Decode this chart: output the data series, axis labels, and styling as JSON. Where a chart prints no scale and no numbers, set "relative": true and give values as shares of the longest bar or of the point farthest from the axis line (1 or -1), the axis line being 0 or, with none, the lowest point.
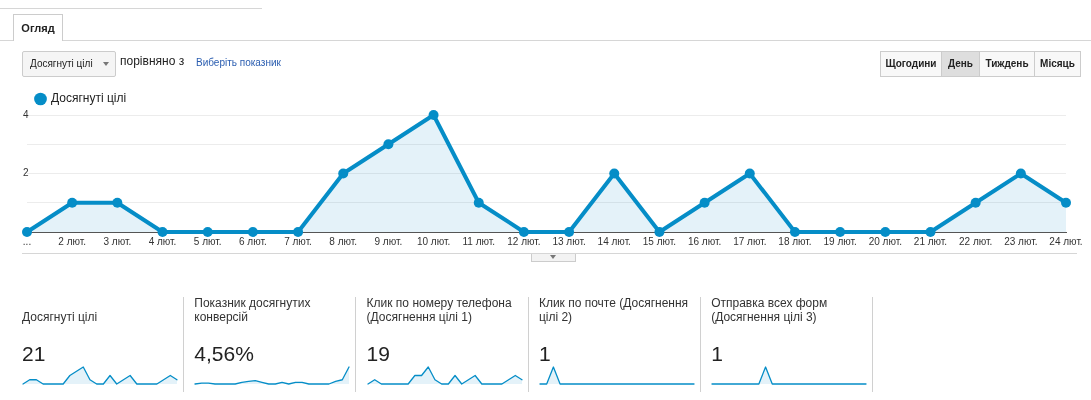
{
  "chart_data": [
    {
      "type": "area",
      "categories": [
        "...",
        "2 лют.",
        "3 лют.",
        "4 лют.",
        "5 лют.",
        "6 лют.",
        "7 лют.",
        "8 лют.",
        "9 лют.",
        "10 лют.",
        "11 лют.",
        "12 лют.",
        "13 лют.",
        "14 лют.",
        "15 лют.",
        "16 лют.",
        "17 лют.",
        "18 лют.",
        "19 лют.",
        "20 лют.",
        "21 лют.",
        "22 лют.",
        "23 лют.",
        "24 лют."
      ],
      "series": [
        {
          "name": "Досягнуті цілі",
          "color": "#058dc7",
          "values": [
            0,
            1,
            1,
            0,
            0,
            0,
            0,
            2,
            3,
            4,
            1,
            0,
            0,
            2,
            0,
            1,
            2,
            0,
            0,
            0,
            0,
            1,
            2,
            1
          ]
        }
      ],
      "ylim": [
        0,
        4
      ],
      "yticks": [
        {
          "value": 0,
          "label": null
        },
        {
          "value": 1,
          "label": null
        },
        2,
        {
          "value": 3,
          "label": null
        },
        4
      ],
      "grid": "y",
      "legend": "top left",
      "marker": "circle",
      "annotations": [
        "Огляд",
        "Досягнуті цілі",
        "порівняно з",
        "Виберіть показник",
        "Щогодини",
        "День",
        "Тиждень",
        "Місяць"
      ]
    },
    {
      "type": "area",
      "title": "Досягнуті цілі",
      "relative": true,
      "categories": [
        null,
        null,
        null,
        null,
        null,
        null,
        null,
        null,
        null,
        null,
        null,
        null,
        null,
        null,
        null,
        null,
        null,
        null,
        null,
        null,
        null,
        null,
        null,
        null
      ],
      "series": [
        {
          "color": "#058dc7",
          "values": [
            0,
            0.25,
            0.25,
            0,
            0,
            0,
            0,
            0.5,
            0.75,
            1,
            0.25,
            0,
            0,
            0.5,
            0,
            0.25,
            0.5,
            0,
            0,
            0,
            0,
            0.25,
            0.5,
            0.25
          ]
        }
      ],
      "annotations": [
        "21"
      ]
    },
    {
      "type": "area",
      "title": "Показник досягнутих конверсій",
      "relative": true,
      "categories": [
        null,
        null,
        null,
        null,
        null,
        null,
        null,
        null,
        null,
        null,
        null,
        null,
        null,
        null,
        null,
        null,
        null,
        null,
        null,
        null,
        null,
        null,
        null,
        null
      ],
      "series": [
        {
          "color": "#058dc7",
          "values": [
            0,
            0.05,
            0.05,
            0,
            0,
            0,
            0,
            0.1,
            0.15,
            0.2,
            0.1,
            0,
            0,
            0.1,
            0,
            0.1,
            0.1,
            0,
            0,
            0,
            0,
            0.15,
            0.25,
            1
          ]
        }
      ],
      "annotations": [
        "4,56%"
      ]
    },
    {
      "type": "area",
      "title": "Клик по номеру телефона (Досягнення цілі 1)",
      "relative": true,
      "categories": [
        null,
        null,
        null,
        null,
        null,
        null,
        null,
        null,
        null,
        null,
        null,
        null,
        null,
        null,
        null,
        null,
        null,
        null,
        null,
        null,
        null,
        null,
        null,
        null
      ],
      "series": [
        {
          "color": "#058dc7",
          "values": [
            0,
            0.25,
            0,
            0,
            0,
            0,
            0,
            0.5,
            0.5,
            1,
            0.25,
            0,
            0,
            0.5,
            0,
            0.25,
            0.5,
            0,
            0,
            0,
            0,
            0.25,
            0.5,
            0.25
          ]
        }
      ],
      "annotations": [
        "19"
      ]
    },
    {
      "type": "area",
      "title": "Клик по почте (Досягнення цілі 2)",
      "relative": true,
      "categories": [
        null,
        null,
        null,
        null,
        null,
        null,
        null,
        null,
        null,
        null,
        null,
        null,
        null,
        null,
        null,
        null,
        null,
        null,
        null,
        null,
        null,
        null,
        null,
        null
      ],
      "series": [
        {
          "color": "#058dc7",
          "values": [
            0,
            0,
            1,
            0,
            0,
            0,
            0,
            0,
            0,
            0,
            0,
            0,
            0,
            0,
            0,
            0,
            0,
            0,
            0,
            0,
            0,
            0,
            0,
            0
          ]
        }
      ],
      "annotations": [
        "1"
      ]
    },
    {
      "type": "area",
      "title": "Отправка всех форм (Досягнення цілі 3)",
      "relative": true,
      "categories": [
        null,
        null,
        null,
        null,
        null,
        null,
        null,
        null,
        null,
        null,
        null,
        null,
        null,
        null,
        null,
        null,
        null,
        null,
        null,
        null,
        null,
        null,
        null,
        null
      ],
      "series": [
        {
          "color": "#058dc7",
          "values": [
            0,
            0,
            0,
            0,
            0,
            0,
            0,
            0,
            1,
            0,
            0,
            0,
            0,
            0,
            0,
            0,
            0,
            0,
            0,
            0,
            0,
            0,
            0,
            0
          ]
        }
      ],
      "annotations": [
        "1"
      ]
    }
  ]
}
